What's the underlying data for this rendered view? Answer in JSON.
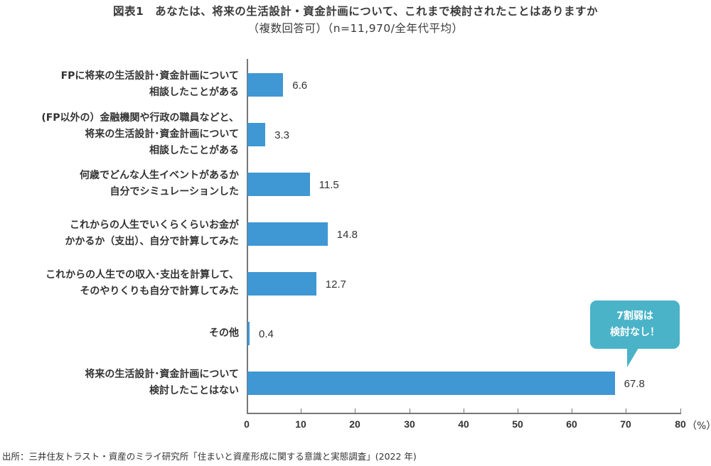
{
  "header": {
    "title": "図表1　あなたは、将来の生活設計・資金計画について、これまで検討されたことはありますか",
    "subtitle": "（複数回答可）（n=11,970/全年代平均）"
  },
  "chart_data": {
    "type": "bar",
    "orientation": "horizontal",
    "title": "図表1　あなたは、将来の生活設計・資金計画について、これまで検討されたことはありますか",
    "subtitle": "（複数回答可）（n=11,970/全年代平均）",
    "categories": [
      [
        "FPに将来の生活設計･資金計画について",
        "相談したことがある"
      ],
      [
        "(FP以外の）金融機関や行政の職員などと、",
        "将来の生活設計･資金計画について",
        "相談したことがある"
      ],
      [
        "何歳でどんな人生イベントがあるか",
        "自分でシミュレーションした"
      ],
      [
        "これからの人生でいくらくらいお金が",
        "かかるか（支出）、自分で計算してみた"
      ],
      [
        "これからの人生での収入･支出を計算して、",
        "そのやりくりも自分で計算してみた"
      ],
      [
        "その他"
      ],
      [
        "将来の生活設計･資金計画について",
        "検討したことはない"
      ]
    ],
    "values": [
      6.6,
      3.3,
      11.5,
      14.8,
      12.7,
      0.4,
      67.8
    ],
    "value_labels": [
      "6.6",
      "3.3",
      "11.5",
      "14.8",
      "12.7",
      "0.4",
      "67.8"
    ],
    "xlabel": "",
    "ylabel": "",
    "xlim": [
      0,
      80
    ],
    "xticks": [
      "0",
      "10",
      "20",
      "30",
      "40",
      "50",
      "60",
      "70",
      "80"
    ],
    "unit": "（%）",
    "grid": false,
    "bar_color": "#3f97d3",
    "annotation": {
      "text_lines": [
        "7割弱は",
        "検討なし！"
      ],
      "target_category_index": 6,
      "color": "#4ab3c8"
    }
  },
  "footer": {
    "source": "出所：三井住友トラスト・資産のミライ研究所「住まいと資産形成に関する意識と実態調査」(2022 年)"
  }
}
